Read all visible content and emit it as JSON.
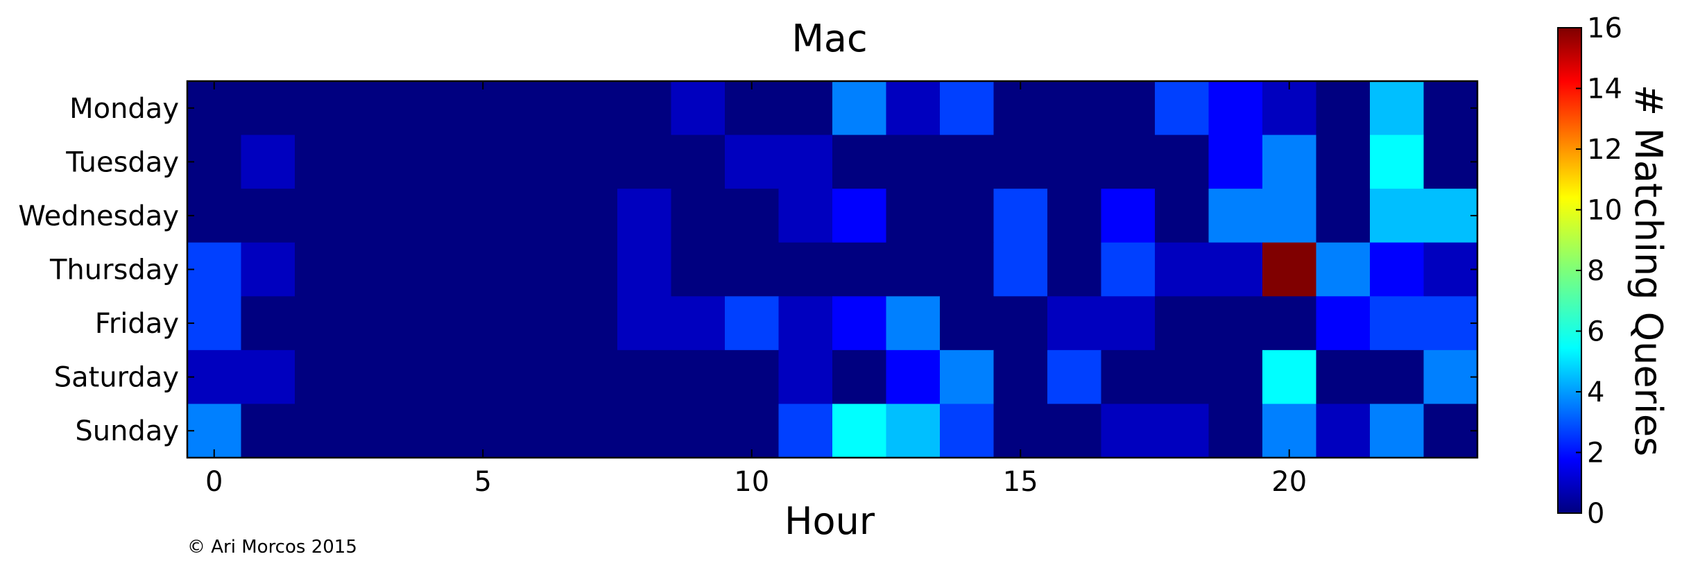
{
  "chart_data": {
    "type": "heatmap",
    "title": "Mac",
    "xlabel": "Hour",
    "ylabel": "",
    "x_ticks": [
      0,
      5,
      10,
      15,
      20
    ],
    "x_range": [
      -0.5,
      23.5
    ],
    "rows": [
      "Monday",
      "Tuesday",
      "Wednesday",
      "Thursday",
      "Friday",
      "Saturday",
      "Sunday"
    ],
    "columns": [
      0,
      1,
      2,
      3,
      4,
      5,
      6,
      7,
      8,
      9,
      10,
      11,
      12,
      13,
      14,
      15,
      16,
      17,
      18,
      19,
      20,
      21,
      22,
      23
    ],
    "values": [
      [
        0,
        0,
        0,
        0,
        0,
        0,
        0,
        0,
        0,
        1,
        0,
        0,
        4,
        1,
        3,
        0,
        0,
        0,
        3,
        2,
        1,
        0,
        5,
        0
      ],
      [
        0,
        1,
        0,
        0,
        0,
        0,
        0,
        0,
        0,
        0,
        1,
        1,
        0,
        0,
        0,
        0,
        0,
        0,
        0,
        2,
        4,
        0,
        6,
        0
      ],
      [
        0,
        0,
        0,
        0,
        0,
        0,
        0,
        0,
        1,
        0,
        0,
        1,
        2,
        0,
        0,
        3,
        0,
        2,
        0,
        4,
        4,
        0,
        5,
        5
      ],
      [
        3,
        1,
        0,
        0,
        0,
        0,
        0,
        0,
        1,
        0,
        0,
        0,
        0,
        0,
        0,
        3,
        0,
        3,
        1,
        1,
        16,
        4,
        2,
        1
      ],
      [
        3,
        0,
        0,
        0,
        0,
        0,
        0,
        0,
        1,
        1,
        3,
        1,
        2,
        4,
        0,
        0,
        1,
        1,
        0,
        0,
        0,
        2,
        3,
        3
      ],
      [
        1,
        1,
        0,
        0,
        0,
        0,
        0,
        0,
        0,
        0,
        0,
        1,
        0,
        2,
        4,
        0,
        3,
        0,
        0,
        0,
        6,
        0,
        0,
        4
      ],
      [
        4,
        0,
        0,
        0,
        0,
        0,
        0,
        0,
        0,
        0,
        0,
        3,
        6,
        5,
        3,
        0,
        0,
        1,
        1,
        0,
        4,
        1,
        4,
        0
      ]
    ],
    "colorbar": {
      "label": "# Matching Queries",
      "colormap": "jet",
      "range": [
        0,
        16
      ],
      "ticks": [
        0,
        2,
        4,
        6,
        8,
        10,
        12,
        14,
        16
      ]
    },
    "grid": false
  },
  "footer": {
    "copyright": "© Ari Morcos  2015"
  }
}
